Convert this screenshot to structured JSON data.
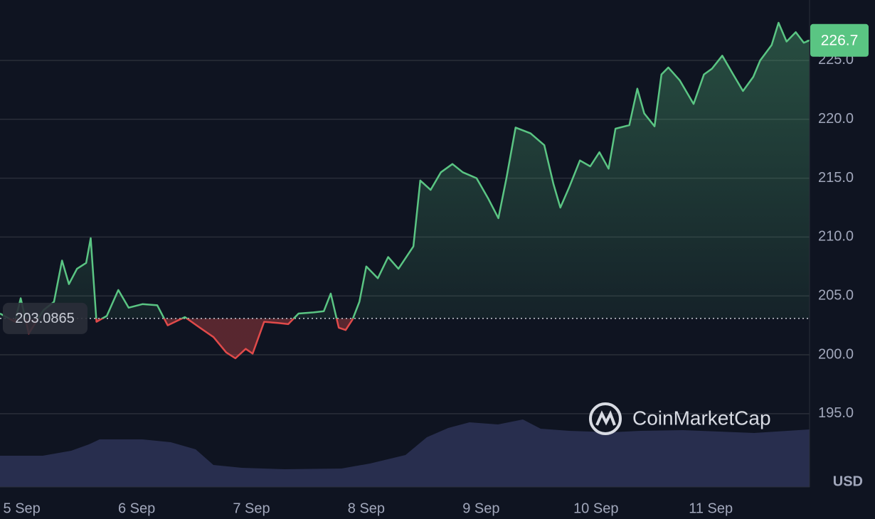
{
  "chart_data": {
    "type": "line",
    "x": [
      4.81,
      4.94,
      4.99,
      5.06,
      5.19,
      5.28,
      5.35,
      5.41,
      5.48,
      5.56,
      5.6,
      5.65,
      5.74,
      5.84,
      5.93,
      6.05,
      6.18,
      6.27,
      6.42,
      6.55,
      6.67,
      6.78,
      6.86,
      6.95,
      7.01,
      7.11,
      7.23,
      7.32,
      7.41,
      7.54,
      7.63,
      7.69,
      7.76,
      7.82,
      7.88,
      7.94,
      8.0,
      8.1,
      8.19,
      8.28,
      8.41,
      8.47,
      8.56,
      8.65,
      8.75,
      8.84,
      8.96,
      9.06,
      9.15,
      9.22,
      9.3,
      9.43,
      9.55,
      9.63,
      9.69,
      9.77,
      9.86,
      9.95,
      10.03,
      10.11,
      10.17,
      10.29,
      10.36,
      10.42,
      10.51,
      10.57,
      10.63,
      10.73,
      10.85,
      10.94,
      11.01,
      11.1,
      11.19,
      11.28,
      11.37,
      11.43,
      11.53,
      11.59,
      11.66,
      11.74,
      11.81,
      11.86
    ],
    "values": [
      203.5,
      202.8,
      204.8,
      201.8,
      203.8,
      204.5,
      208,
      206,
      207.3,
      207.8,
      209.9,
      202.8,
      203.3,
      205.5,
      204,
      204.3,
      204.2,
      202.5,
      203.2,
      202.3,
      201.5,
      200.2,
      199.7,
      200.5,
      200.1,
      202.8,
      202.7,
      202.6,
      203.5,
      203.6,
      203.7,
      205.2,
      202.3,
      202.1,
      203,
      204.5,
      207.5,
      206.5,
      208.3,
      207.3,
      209.2,
      214.8,
      214,
      215.5,
      216.2,
      215.5,
      215,
      213.3,
      211.6,
      215,
      219.3,
      218.8,
      217.8,
      214.5,
      212.5,
      214.3,
      216.5,
      216,
      217.2,
      215.8,
      219.2,
      219.5,
      222.6,
      220.5,
      219.4,
      223.8,
      224.4,
      223.3,
      221.3,
      223.8,
      224.3,
      225.4,
      223.9,
      222.4,
      223.6,
      225,
      226.3,
      228.2,
      226.6,
      227.4,
      226.5,
      226.7
    ],
    "up_color": "#5ac583",
    "down_color": "#e04a4a",
    "baseline": 203.0865,
    "last_value": 226.7,
    "xlim": [
      4.81,
      11.86
    ],
    "ylim": [
      188.77,
      230.13
    ],
    "yticks": [
      {
        "value": 195,
        "label": "195.0"
      },
      {
        "value": 200,
        "label": "200.0"
      },
      {
        "value": 205,
        "label": "205.0"
      },
      {
        "value": 210,
        "label": "210.0"
      },
      {
        "value": 215,
        "label": "215.0"
      },
      {
        "value": 220,
        "label": "220.0"
      },
      {
        "value": 225,
        "label": "225.0"
      }
    ],
    "xticks": [
      {
        "value": 5,
        "label": "5 Sep"
      },
      {
        "value": 6,
        "label": "6 Sep"
      },
      {
        "value": 7,
        "label": "7 Sep"
      },
      {
        "value": 8,
        "label": "8 Sep"
      },
      {
        "value": 9,
        "label": "9 Sep"
      },
      {
        "value": 10,
        "label": "10 Sep"
      },
      {
        "value": 11,
        "label": "11 Sep"
      }
    ],
    "currency": "USD",
    "watermark": "CoinMarketCap",
    "grid": true
  }
}
